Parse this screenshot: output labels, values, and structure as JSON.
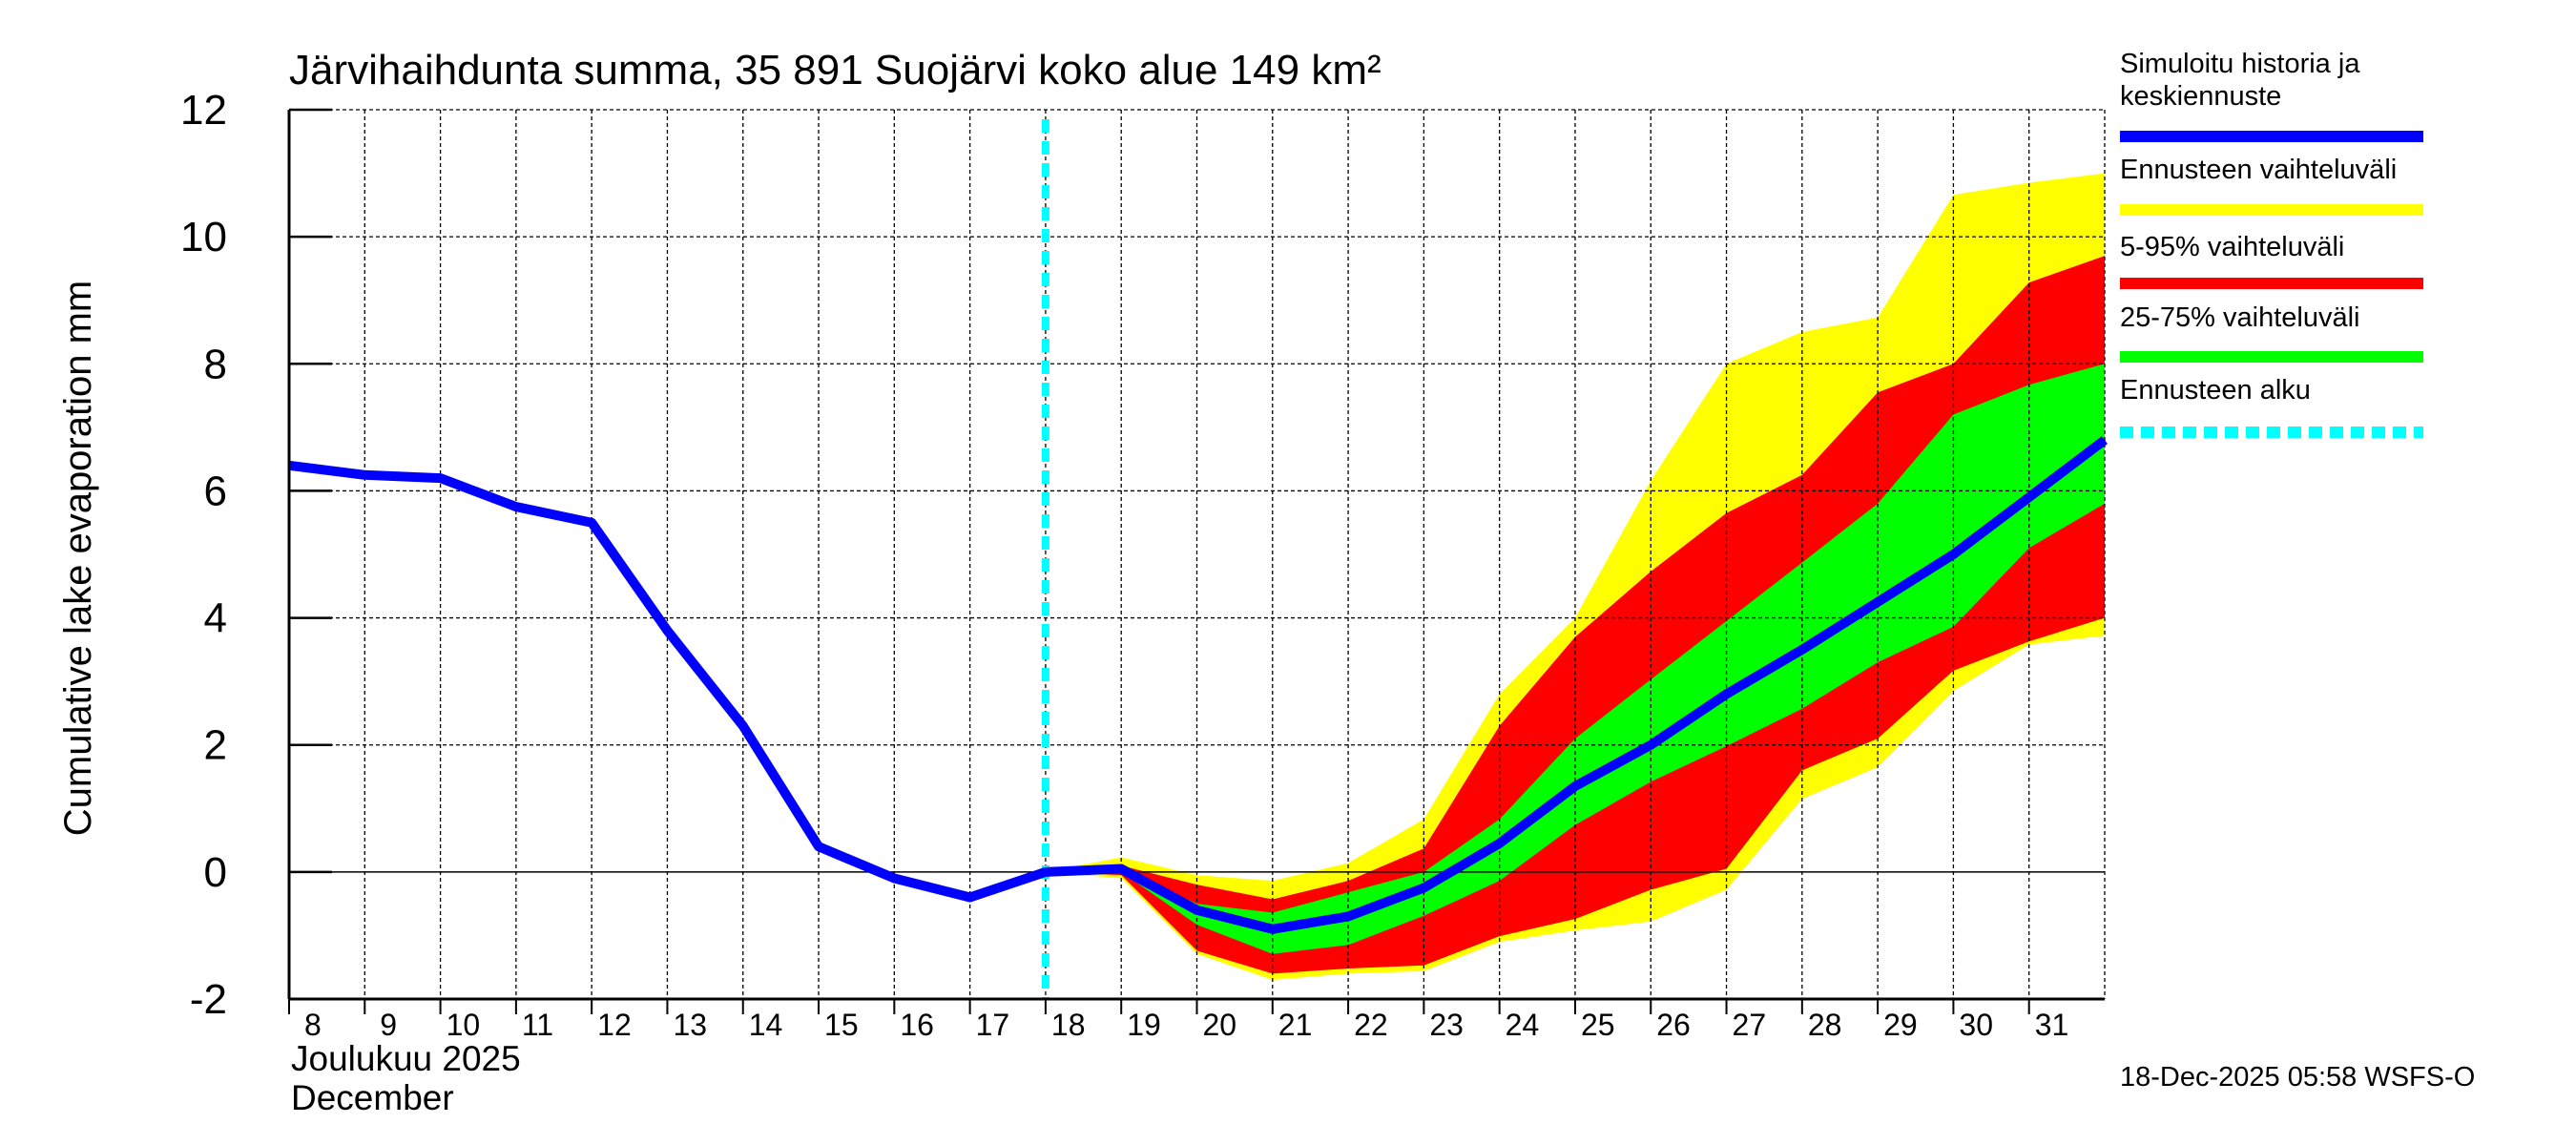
{
  "chart_data": {
    "type": "area",
    "title": "Järvihaihdunta summa, 35 891 Suojärvi koko alue 149 km²",
    "ylabel": "Cumulative lake evaporation   mm",
    "xlabel_line1": "Joulukuu  2025",
    "xlabel_line2": "December",
    "ylim": [
      -2,
      12
    ],
    "yticks": [
      "-2",
      "0",
      "2",
      "4",
      "6",
      "8",
      "10",
      "12"
    ],
    "x_labels": [
      "8",
      "9",
      "10",
      "11",
      "12",
      "13",
      "14",
      "15",
      "16",
      "17",
      "18",
      "19",
      "20",
      "21",
      "22",
      "23",
      "24",
      "25",
      "26",
      "27",
      "28",
      "29",
      "30",
      "31"
    ],
    "grid": true,
    "forecast_start_day_index": 10,
    "history": {
      "name": "Simuloitu historia ja keskiennuste",
      "values": [
        6.4,
        6.25,
        6.2,
        5.75,
        5.5,
        3.8,
        2.3,
        0.4,
        -0.1,
        -0.4,
        0.0,
        0.05,
        -0.6,
        -0.9,
        -0.7,
        -0.25,
        0.45,
        1.35,
        2.0,
        2.8,
        3.5,
        4.25,
        5.0,
        5.9,
        6.8
      ]
    },
    "bands_start_index": 10,
    "bands": [
      {
        "name": "Ennusteen vaihteluväli",
        "color": "#ffff00",
        "upper": [
          0,
          0.23,
          -0.05,
          -0.14,
          0.14,
          0.83,
          2.8,
          4.0,
          6.16,
          8.0,
          8.5,
          8.73,
          10.66,
          10.85,
          11.0
        ],
        "lower": [
          0,
          -0.1,
          -1.29,
          -1.7,
          -1.6,
          -1.56,
          -1.1,
          -0.92,
          -0.78,
          -0.28,
          1.15,
          1.65,
          2.85,
          3.58,
          3.72
        ]
      },
      {
        "name": "5-95% vaihteluväli",
        "color": "#ff0000",
        "upper": [
          0,
          0.1,
          -0.2,
          -0.43,
          -0.14,
          0.37,
          2.3,
          3.7,
          4.73,
          5.65,
          6.25,
          7.55,
          8.0,
          9.28,
          9.7
        ],
        "lower": [
          0,
          -0.05,
          -1.24,
          -1.6,
          -1.52,
          -1.47,
          -1.01,
          -0.74,
          -0.28,
          0.05,
          1.6,
          2.1,
          3.17,
          3.63,
          4.0
        ]
      },
      {
        "name": "25-75% vaihteluväli",
        "color": "#00ff00",
        "upper": [
          0,
          0.05,
          -0.5,
          -0.64,
          -0.32,
          0.0,
          0.83,
          2.1,
          3.03,
          3.95,
          4.87,
          5.8,
          7.2,
          7.67,
          8.0
        ],
        "lower": [
          0,
          0.0,
          -0.83,
          -1.29,
          -1.15,
          -0.69,
          -0.14,
          0.74,
          1.42,
          1.98,
          2.57,
          3.3,
          3.86,
          5.1,
          5.8
        ]
      }
    ],
    "legend": [
      {
        "label_line1": "Simuloitu historia ja",
        "label_line2": "keskiennuste",
        "color": "#0000ff",
        "style": "solid"
      },
      {
        "label_line1": "Ennusteen vaihteluväli",
        "color": "#ffff00",
        "style": "solid"
      },
      {
        "label_line1": "5-95% vaihteluväli",
        "color": "#ff0000",
        "style": "solid"
      },
      {
        "label_line1": "25-75% vaihteluväli",
        "color": "#00ff00",
        "style": "solid"
      },
      {
        "label_line1": "Ennusteen alku",
        "color": "#00ffff",
        "style": "dashed"
      }
    ],
    "legend_placement": "right",
    "footer": "18-Dec-2025 05:58 WSFS-O"
  }
}
